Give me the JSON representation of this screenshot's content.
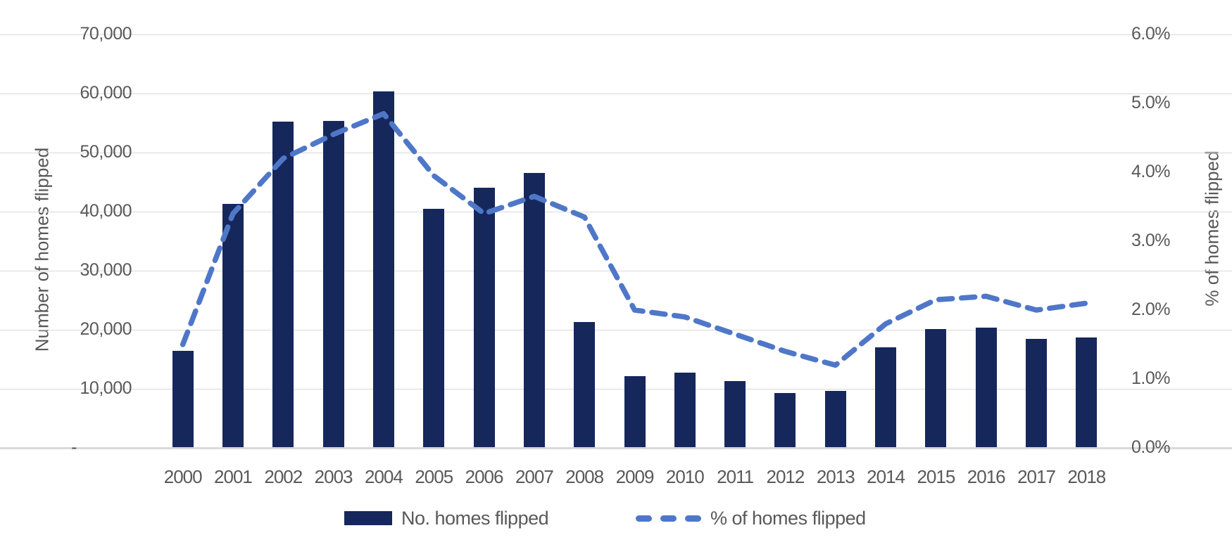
{
  "chart_data": {
    "type": "bar",
    "subtype": "combo-bar-line-dual-axis",
    "categories": [
      "2000",
      "2001",
      "2002",
      "2003",
      "2004",
      "2005",
      "2006",
      "2007",
      "2008",
      "2009",
      "2010",
      "2011",
      "2012",
      "2013",
      "2014",
      "2015",
      "2016",
      "2017",
      "2018"
    ],
    "series": [
      {
        "name": "No. homes flipped",
        "type": "bar",
        "axis": "left",
        "values": [
          16400,
          41300,
          55200,
          55400,
          60400,
          40500,
          44000,
          46500,
          21300,
          12200,
          12700,
          11300,
          9300,
          9600,
          17000,
          20100,
          20400,
          18400,
          18700
        ]
      },
      {
        "name": "% of homes flipped",
        "type": "line",
        "line_style": "dashed",
        "axis": "right",
        "values": [
          1.5,
          3.4,
          4.2,
          4.55,
          4.85,
          3.95,
          3.4,
          3.65,
          3.35,
          2.0,
          1.9,
          1.65,
          1.4,
          1.2,
          1.8,
          2.15,
          2.2,
          2.0,
          2.1
        ]
      }
    ],
    "left_axis": {
      "title": "Number of homes flipped",
      "min": 0,
      "max": 70000,
      "tick_step": 10000,
      "tick_labels_top_to_bottom": [
        "70,000",
        "60,000",
        "50,000",
        "40,000",
        "30,000",
        "20,000",
        "10,000",
        "-"
      ]
    },
    "right_axis": {
      "title": "% of homes flipped",
      "min": 0,
      "max": 6,
      "tick_step": 1,
      "tick_labels_top_to_bottom": [
        "6.0%",
        "5.0%",
        "4.0%",
        "3.0%",
        "2.0%",
        "1.0%",
        "0.0%"
      ]
    },
    "grid": true,
    "legend_position": "bottom"
  },
  "colors": {
    "bar_fill": "#16275C",
    "line_stroke": "#4F77C8",
    "gridline": "#D9D9D9",
    "axis_text": "#595959",
    "background": "#FFFFFF"
  }
}
